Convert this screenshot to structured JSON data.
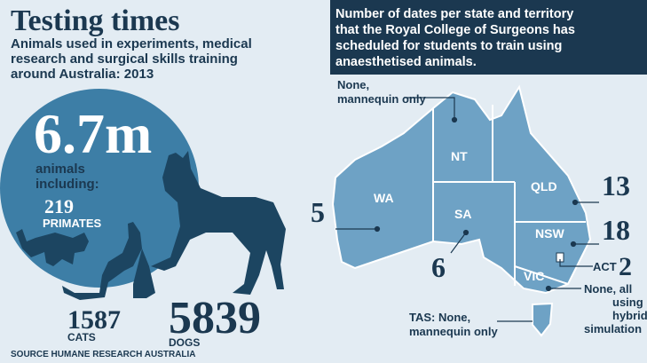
{
  "title": "Testing times",
  "subtitle": [
    "Animals used in experiments, medical",
    "research and surgical skills training",
    "around Australia: 2013"
  ],
  "total": {
    "number": "6.7m",
    "label": [
      "animals",
      "including:"
    ]
  },
  "animals": {
    "primates": {
      "number": "219",
      "label": "PRIMATES"
    },
    "cats": {
      "number": "1587",
      "label": "CATS"
    },
    "dogs": {
      "number": "5839",
      "label": "DOGS"
    }
  },
  "source": "SOURCE HUMANE RESEARCH AUSTRALIA",
  "map": {
    "heading": [
      "Number of dates per state and territory",
      "that the Royal College of Surgeons has",
      "scheduled for students to train using",
      "anaesthetised animals."
    ],
    "states": {
      "wa": {
        "name": "WA",
        "dates": "5"
      },
      "nt": {
        "name": "NT",
        "dates": [
          "None,",
          "mannequin only"
        ]
      },
      "sa": {
        "name": "SA",
        "dates": "6"
      },
      "qld": {
        "name": "QLD",
        "dates": "13"
      },
      "nsw": {
        "name": "NSW",
        "dates": "18"
      },
      "act": {
        "name": "ACT",
        "dates": "2"
      },
      "vic": {
        "name": "VIC",
        "dates": [
          "None, all",
          "using",
          "hybrid",
          "simulation"
        ]
      },
      "tas": {
        "name": "TAS:",
        "dates": [
          "None,",
          "mannequin only"
        ]
      }
    }
  }
}
